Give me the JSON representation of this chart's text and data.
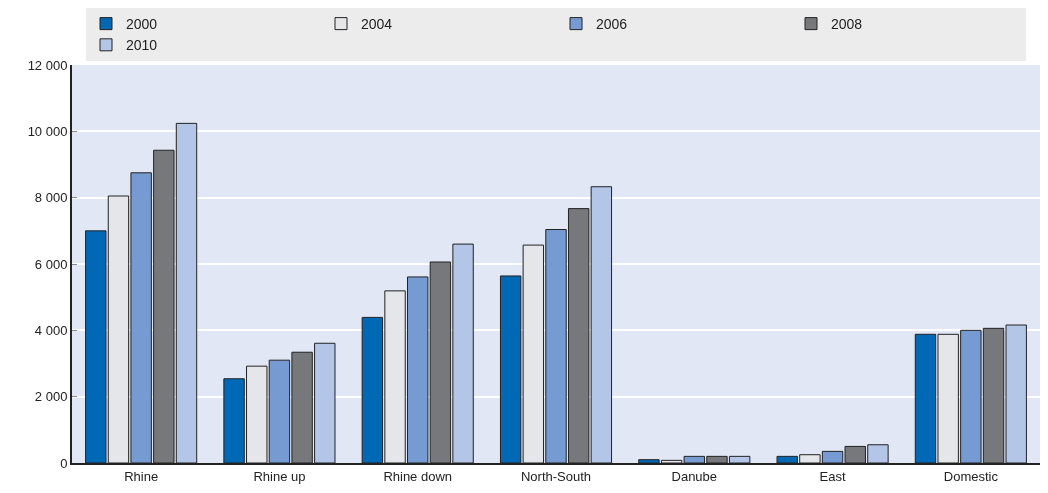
{
  "chart_data": {
    "type": "bar",
    "categories": [
      "Rhine",
      "Rhine up",
      "Rhine down",
      "North-South",
      "Danube",
      "East",
      "Domestic"
    ],
    "series": [
      {
        "name": "2000",
        "color": "#0068b5",
        "values": [
          7000,
          2540,
          4390,
          5640,
          100,
          200,
          3880
        ]
      },
      {
        "name": "2004",
        "color": "#e5e6ea",
        "values": [
          8050,
          2920,
          5190,
          6570,
          80,
          250,
          3880
        ]
      },
      {
        "name": "2006",
        "color": "#769bd3",
        "values": [
          8750,
          3100,
          5610,
          7040,
          200,
          350,
          4000
        ]
      },
      {
        "name": "2008",
        "color": "#77787c",
        "values": [
          9430,
          3340,
          6060,
          7670,
          200,
          500,
          4060
        ]
      },
      {
        "name": "2010",
        "color": "#b3c6e7",
        "values": [
          10240,
          3610,
          6600,
          8330,
          200,
          550,
          4160
        ]
      }
    ],
    "ylim": [
      0,
      12000
    ],
    "yticks": [
      0,
      {
        "value": 2000,
        "label": "2 000"
      },
      {
        "value": 4000,
        "label": "4 000"
      },
      {
        "value": 6000,
        "label": "6 000"
      },
      {
        "value": 8000,
        "label": "8 000"
      },
      {
        "value": 10000,
        "label": "10 000"
      },
      {
        "value": 12000,
        "label": "12 000"
      }
    ],
    "grid": "y",
    "legend": "top"
  }
}
